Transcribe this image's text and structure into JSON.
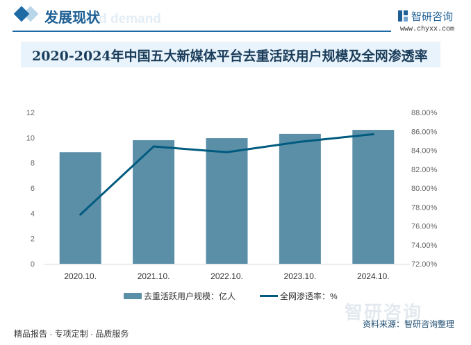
{
  "header": {
    "section_title": "发展现状",
    "bg_text": "and demand",
    "logo_name": "智研咨询",
    "logo_url": "www.chyxx.com"
  },
  "footer": {
    "slogan": "精品报告 · 专项定制 · 品质服务",
    "source": "资料来源：智研咨询整理",
    "watermark": "智研咨询"
  },
  "colors": {
    "bar": "#5b8fa8",
    "line": "#005b7f",
    "accent": "#1d6aa5"
  },
  "chart_data": {
    "type": "bar",
    "title": "2020-2024年中国五大新媒体平台去重活跃用户规模及全网渗透率",
    "categories": [
      "2020.10.",
      "2021.10.",
      "2022.10.",
      "2023.10.",
      "2024.10."
    ],
    "series": [
      {
        "name": "去重活跃用户规模：亿人",
        "type": "bar",
        "axis": "left",
        "values": [
          8.85,
          9.8,
          9.96,
          10.3,
          10.62
        ]
      },
      {
        "name": "全网渗透率：%",
        "type": "line",
        "axis": "right",
        "values": [
          77.2,
          84.4,
          83.8,
          84.9,
          85.7
        ]
      }
    ],
    "ylim": [
      0,
      12
    ],
    "yticks": [
      "0",
      "2",
      "4",
      "6",
      "8",
      "10",
      "12"
    ],
    "y2lim": [
      72,
      88
    ],
    "y2ticks": [
      "72.00%",
      "74.00%",
      "76.00%",
      "78.00%",
      "80.00%",
      "82.00%",
      "84.00%",
      "86.00%",
      "88.00%"
    ],
    "legend": "bottom",
    "grid": false
  }
}
